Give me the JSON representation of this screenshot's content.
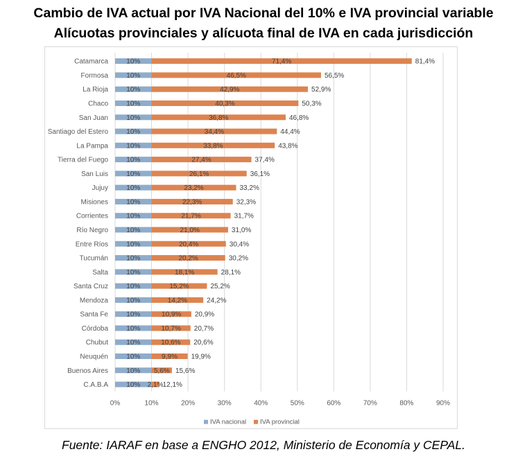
{
  "title_line1": "Cambio de IVA actual por IVA Nacional del 10% e IVA provincial variable",
  "title_line2": "Alícuotas provinciales y alícuota final de IVA en cada jurisdicción",
  "footer": "Fuente: IARAF en base a ENGHO 2012, Ministerio de Economía y CEPAL.",
  "colors": {
    "nacional": "#8faccb",
    "provincial": "#dd8450",
    "grid": "#d9d9d9",
    "text": "#595959"
  },
  "chart_data": {
    "type": "bar",
    "orientation": "horizontal",
    "stacked": true,
    "title": "",
    "xlabel": "",
    "ylabel": "",
    "xlim": [
      0,
      90
    ],
    "x_ticks": [
      "0%",
      "10%",
      "20%",
      "30%",
      "40%",
      "50%",
      "60%",
      "70%",
      "80%",
      "90%"
    ],
    "grid": "vertical",
    "legend_position": "bottom",
    "categories": [
      "Catamarca",
      "Formosa",
      "La Rioja",
      "Chaco",
      "San Juan",
      "Santiago del Estero",
      "La Pampa",
      "Tierra del Fuego",
      "San Luis",
      "Jujuy",
      "Misiones",
      "Corrientes",
      "Río Negro",
      "Entre Ríos",
      "Tucumán",
      "Salta",
      "Santa Cruz",
      "Mendoza",
      "Santa Fe",
      "Córdoba",
      "Chubut",
      "Neuquén",
      "Buenos Aires",
      "C.A.B.A"
    ],
    "series": [
      {
        "name": "IVA nacional",
        "values": [
          10,
          10,
          10,
          10,
          10,
          10,
          10,
          10,
          10,
          10,
          10,
          10,
          10,
          10,
          10,
          10,
          10,
          10,
          10,
          10,
          10,
          10,
          10,
          10
        ],
        "labels": [
          "10%",
          "10%",
          "10%",
          "10%",
          "10%",
          "10%",
          "10%",
          "10%",
          "10%",
          "10%",
          "10%",
          "10%",
          "10%",
          "10%",
          "10%",
          "10%",
          "10%",
          "10%",
          "10%",
          "10%",
          "10%",
          "10%",
          "10%",
          "10%"
        ]
      },
      {
        "name": "IVA provincial",
        "values": [
          71.4,
          46.5,
          42.9,
          40.3,
          36.8,
          34.4,
          33.8,
          27.4,
          26.1,
          23.2,
          22.3,
          21.7,
          21.0,
          20.4,
          20.2,
          18.1,
          15.2,
          14.2,
          10.9,
          10.7,
          10.6,
          9.9,
          5.6,
          2.1
        ],
        "labels": [
          "71,4%",
          "46,5%",
          "42,9%",
          "40,3%",
          "36,8%",
          "34,4%",
          "33,8%",
          "27,4%",
          "26,1%",
          "23,2%",
          "22,3%",
          "21,7%",
          "21,0%",
          "20,4%",
          "20,2%",
          "18,1%",
          "15,2%",
          "14,2%",
          "10,9%",
          "10,7%",
          "10,6%",
          "9,9%",
          "5,6%",
          "2,1%"
        ]
      }
    ],
    "totals": [
      "81,4%",
      "56,5%",
      "52,9%",
      "50,3%",
      "46,8%",
      "44,4%",
      "43,8%",
      "37,4%",
      "36,1%",
      "33,2%",
      "32,3%",
      "31,7%",
      "31,0%",
      "30,4%",
      "30,2%",
      "28,1%",
      "25,2%",
      "24,2%",
      "20,9%",
      "20,7%",
      "20,6%",
      "19,9%",
      "15,6%",
      "12,1%"
    ]
  }
}
